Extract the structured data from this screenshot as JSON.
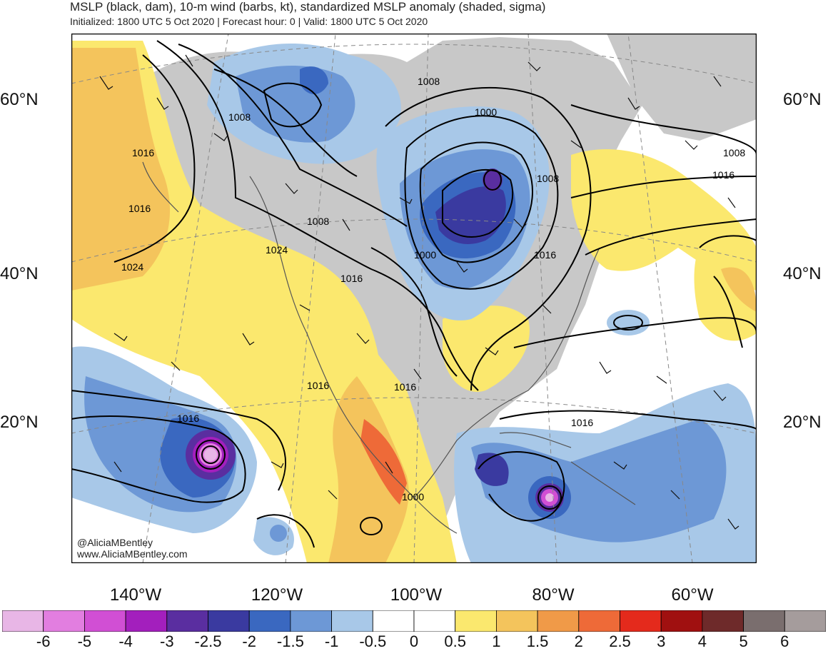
{
  "header": {
    "title": "MSLP (black, dam), 10-m wind (barbs, kt), standardized MSLP anomaly (shaded, sigma)",
    "subtitle": "Initialized: 1800 UTC 5 Oct 2020 | Forecast hour: 0 | Valid: 1800 UTC 5 Oct 2020"
  },
  "map": {
    "lat_labels": [
      "60°N",
      "40°N",
      "20°N"
    ],
    "lon_labels": [
      "140°W",
      "120°W",
      "100°W",
      "80°W",
      "60°W"
    ],
    "isobar_labels": [
      "1008",
      "1000",
      "1008",
      "1016",
      "1008",
      "1024",
      "1000",
      "1008",
      "1016",
      "1016",
      "1024",
      "1016",
      "1008",
      "1016",
      "1016",
      "1016",
      "1016",
      "1016",
      "1000"
    ],
    "credits": [
      "@AliciaMBentley",
      "www.AliciaMBentley.com"
    ],
    "colors": {
      "land_gray": "#c8c8c8",
      "ocean_white": "#ffffff",
      "coast": "#555555",
      "isobar": "#000000"
    }
  },
  "colorbar": {
    "labels": [
      "-6",
      "-5",
      "-4",
      "-3",
      "-2.5",
      "-2",
      "-1.5",
      "-1",
      "-0.5",
      "0",
      "0.5",
      "1",
      "1.5",
      "2",
      "2.5",
      "3",
      "4",
      "5",
      "6"
    ],
    "colors": [
      "#e8b6e6",
      "#e27ee0",
      "#d14fd4",
      "#a31fbd",
      "#5a2ea0",
      "#3a3aa0",
      "#3a68c0",
      "#6d98d6",
      "#a8c8e8",
      "#ffffff",
      "#ffffff",
      "#fbe86e",
      "#f4c45c",
      "#f09a48",
      "#ee6a38",
      "#e42a1c",
      "#a01010",
      "#6e2a2a",
      "#7a6e6e",
      "#a59c9c"
    ]
  }
}
